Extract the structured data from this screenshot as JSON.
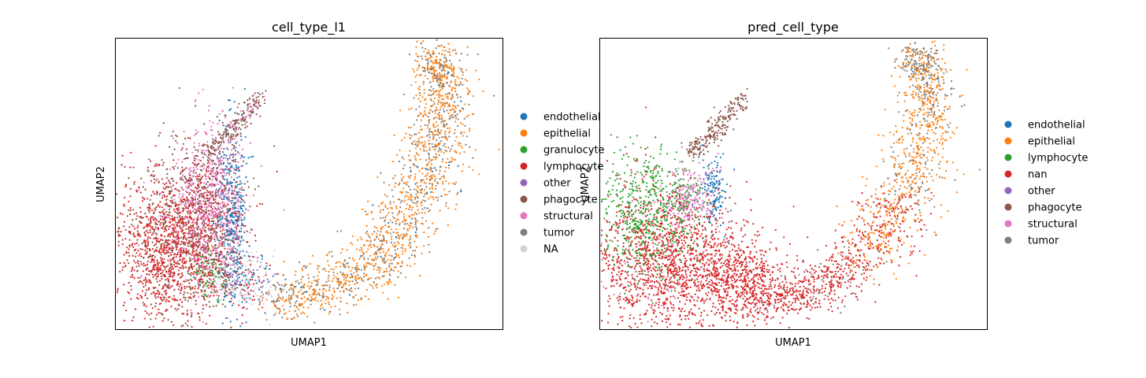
{
  "chart_data": [
    {
      "type": "scatter",
      "title": "cell_type_l1",
      "xlabel": "UMAP1",
      "ylabel": "UMAP2",
      "grid": false,
      "ticks": false,
      "legend_position": "right",
      "legend": [
        {
          "label": "endothelial",
          "color": "#1f77b4"
        },
        {
          "label": "epithelial",
          "color": "#ff7f0e"
        },
        {
          "label": "granulocyte",
          "color": "#2ca02c"
        },
        {
          "label": "lymphocyte",
          "color": "#d62728"
        },
        {
          "label": "other",
          "color": "#9467bd"
        },
        {
          "label": "phagocyte",
          "color": "#8c564b"
        },
        {
          "label": "structural",
          "color": "#e377c2"
        },
        {
          "label": "tumor",
          "color": "#7f7f7f"
        },
        {
          "label": "NA",
          "color": "#d3d3d3"
        }
      ]
    },
    {
      "type": "scatter",
      "title": "pred_cell_type",
      "xlabel": "UMAP1",
      "ylabel": "UMAP2",
      "grid": false,
      "ticks": false,
      "legend_position": "right",
      "legend": [
        {
          "label": "endothelial",
          "color": "#1f77b4"
        },
        {
          "label": "epithelial",
          "color": "#ff7f0e"
        },
        {
          "label": "lymphocyte",
          "color": "#2ca02c"
        },
        {
          "label": "nan",
          "color": "#d62728"
        },
        {
          "label": "other",
          "color": "#9467bd"
        },
        {
          "label": "phagocyte",
          "color": "#8c564b"
        },
        {
          "label": "structural",
          "color": "#e377c2"
        },
        {
          "label": "tumor",
          "color": "#7f7f7f"
        }
      ]
    }
  ]
}
